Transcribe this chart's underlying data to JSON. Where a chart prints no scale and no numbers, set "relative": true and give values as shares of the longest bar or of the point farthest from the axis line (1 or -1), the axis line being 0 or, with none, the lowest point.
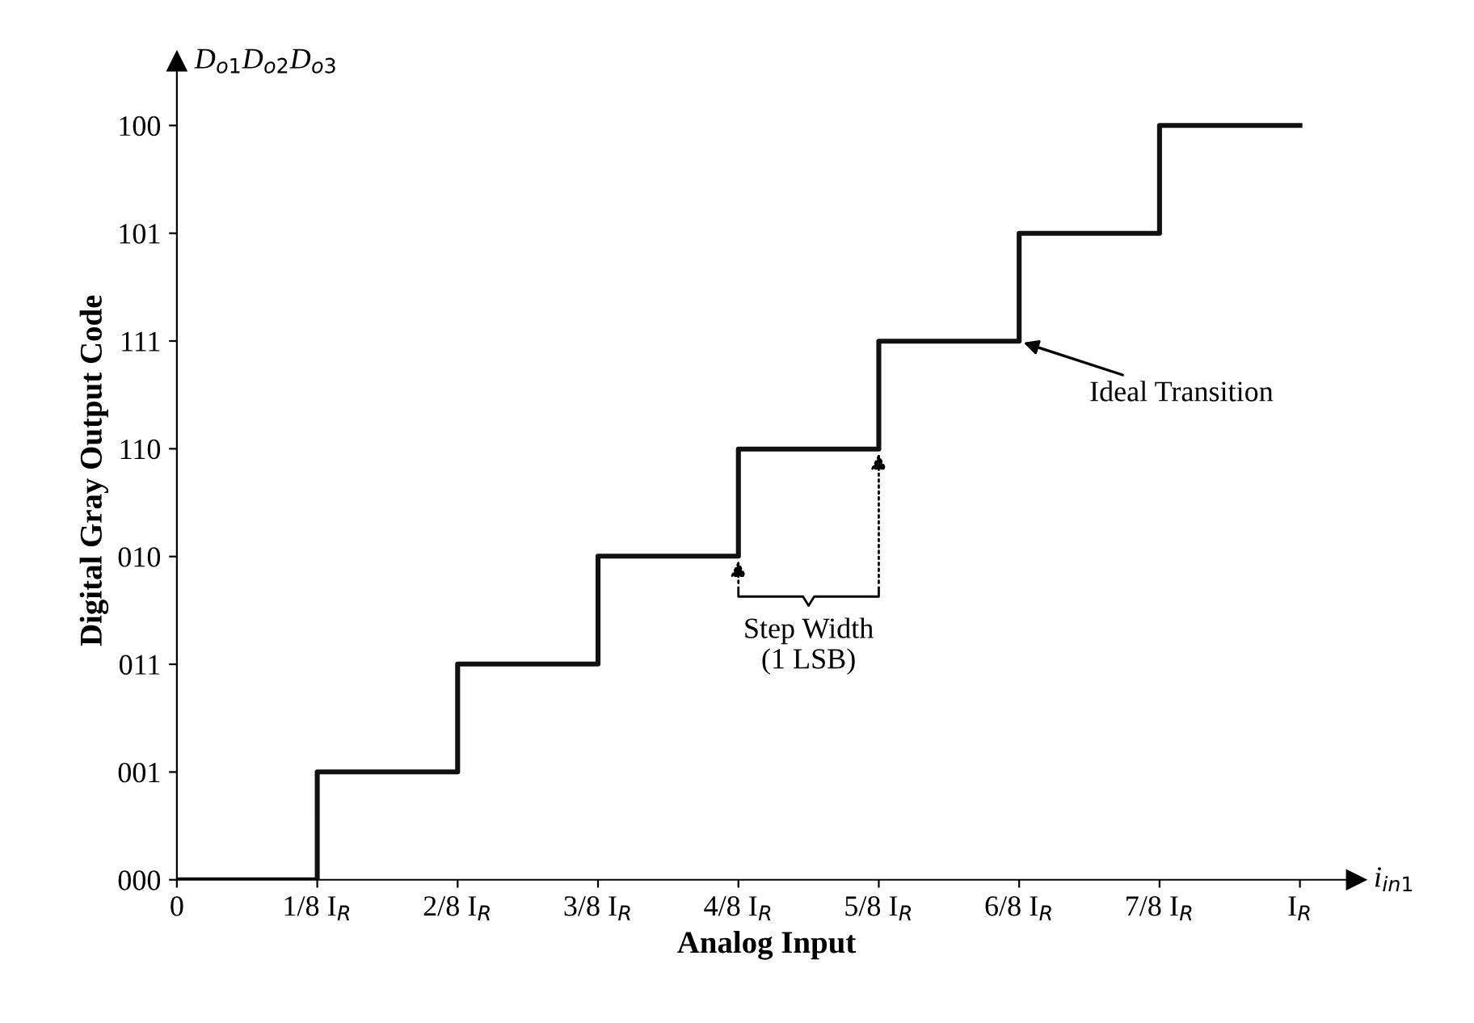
{
  "chart_data": {
    "type": "step",
    "xlabel": "Analog Input",
    "ylabel": "Digital Gray Output Code",
    "categories": [
      "0",
      "1/8 I$_{R}$",
      "2/8 I$_{R}$",
      "3/8 I$_{R}$",
      "4/8 I$_{R}$",
      "5/8 I$_{R}$",
      "6/8 I$_{R}$",
      "7/8 I$_{R}$",
      "I$_{R}$"
    ],
    "values": [
      0,
      0.143,
      0.286,
      0.429,
      0.571,
      0.714,
      0.857,
      1,
      1
    ],
    "relative": true,
    "y_categories": [
      "100",
      "101",
      "111",
      "110",
      "010",
      "011",
      "001",
      "000"
    ],
    "color": "#111111",
    "grid": false,
    "annotations": [
      "D$_{o1}$D$_{o2}$D$_{o3}$",
      "i$_{in1}$",
      {
        "text": "Ideal Transition",
        "x": "6/8 I$_{R}$",
        "y": 0.714
      },
      "Step Width\n(1 LSB)"
    ]
  }
}
